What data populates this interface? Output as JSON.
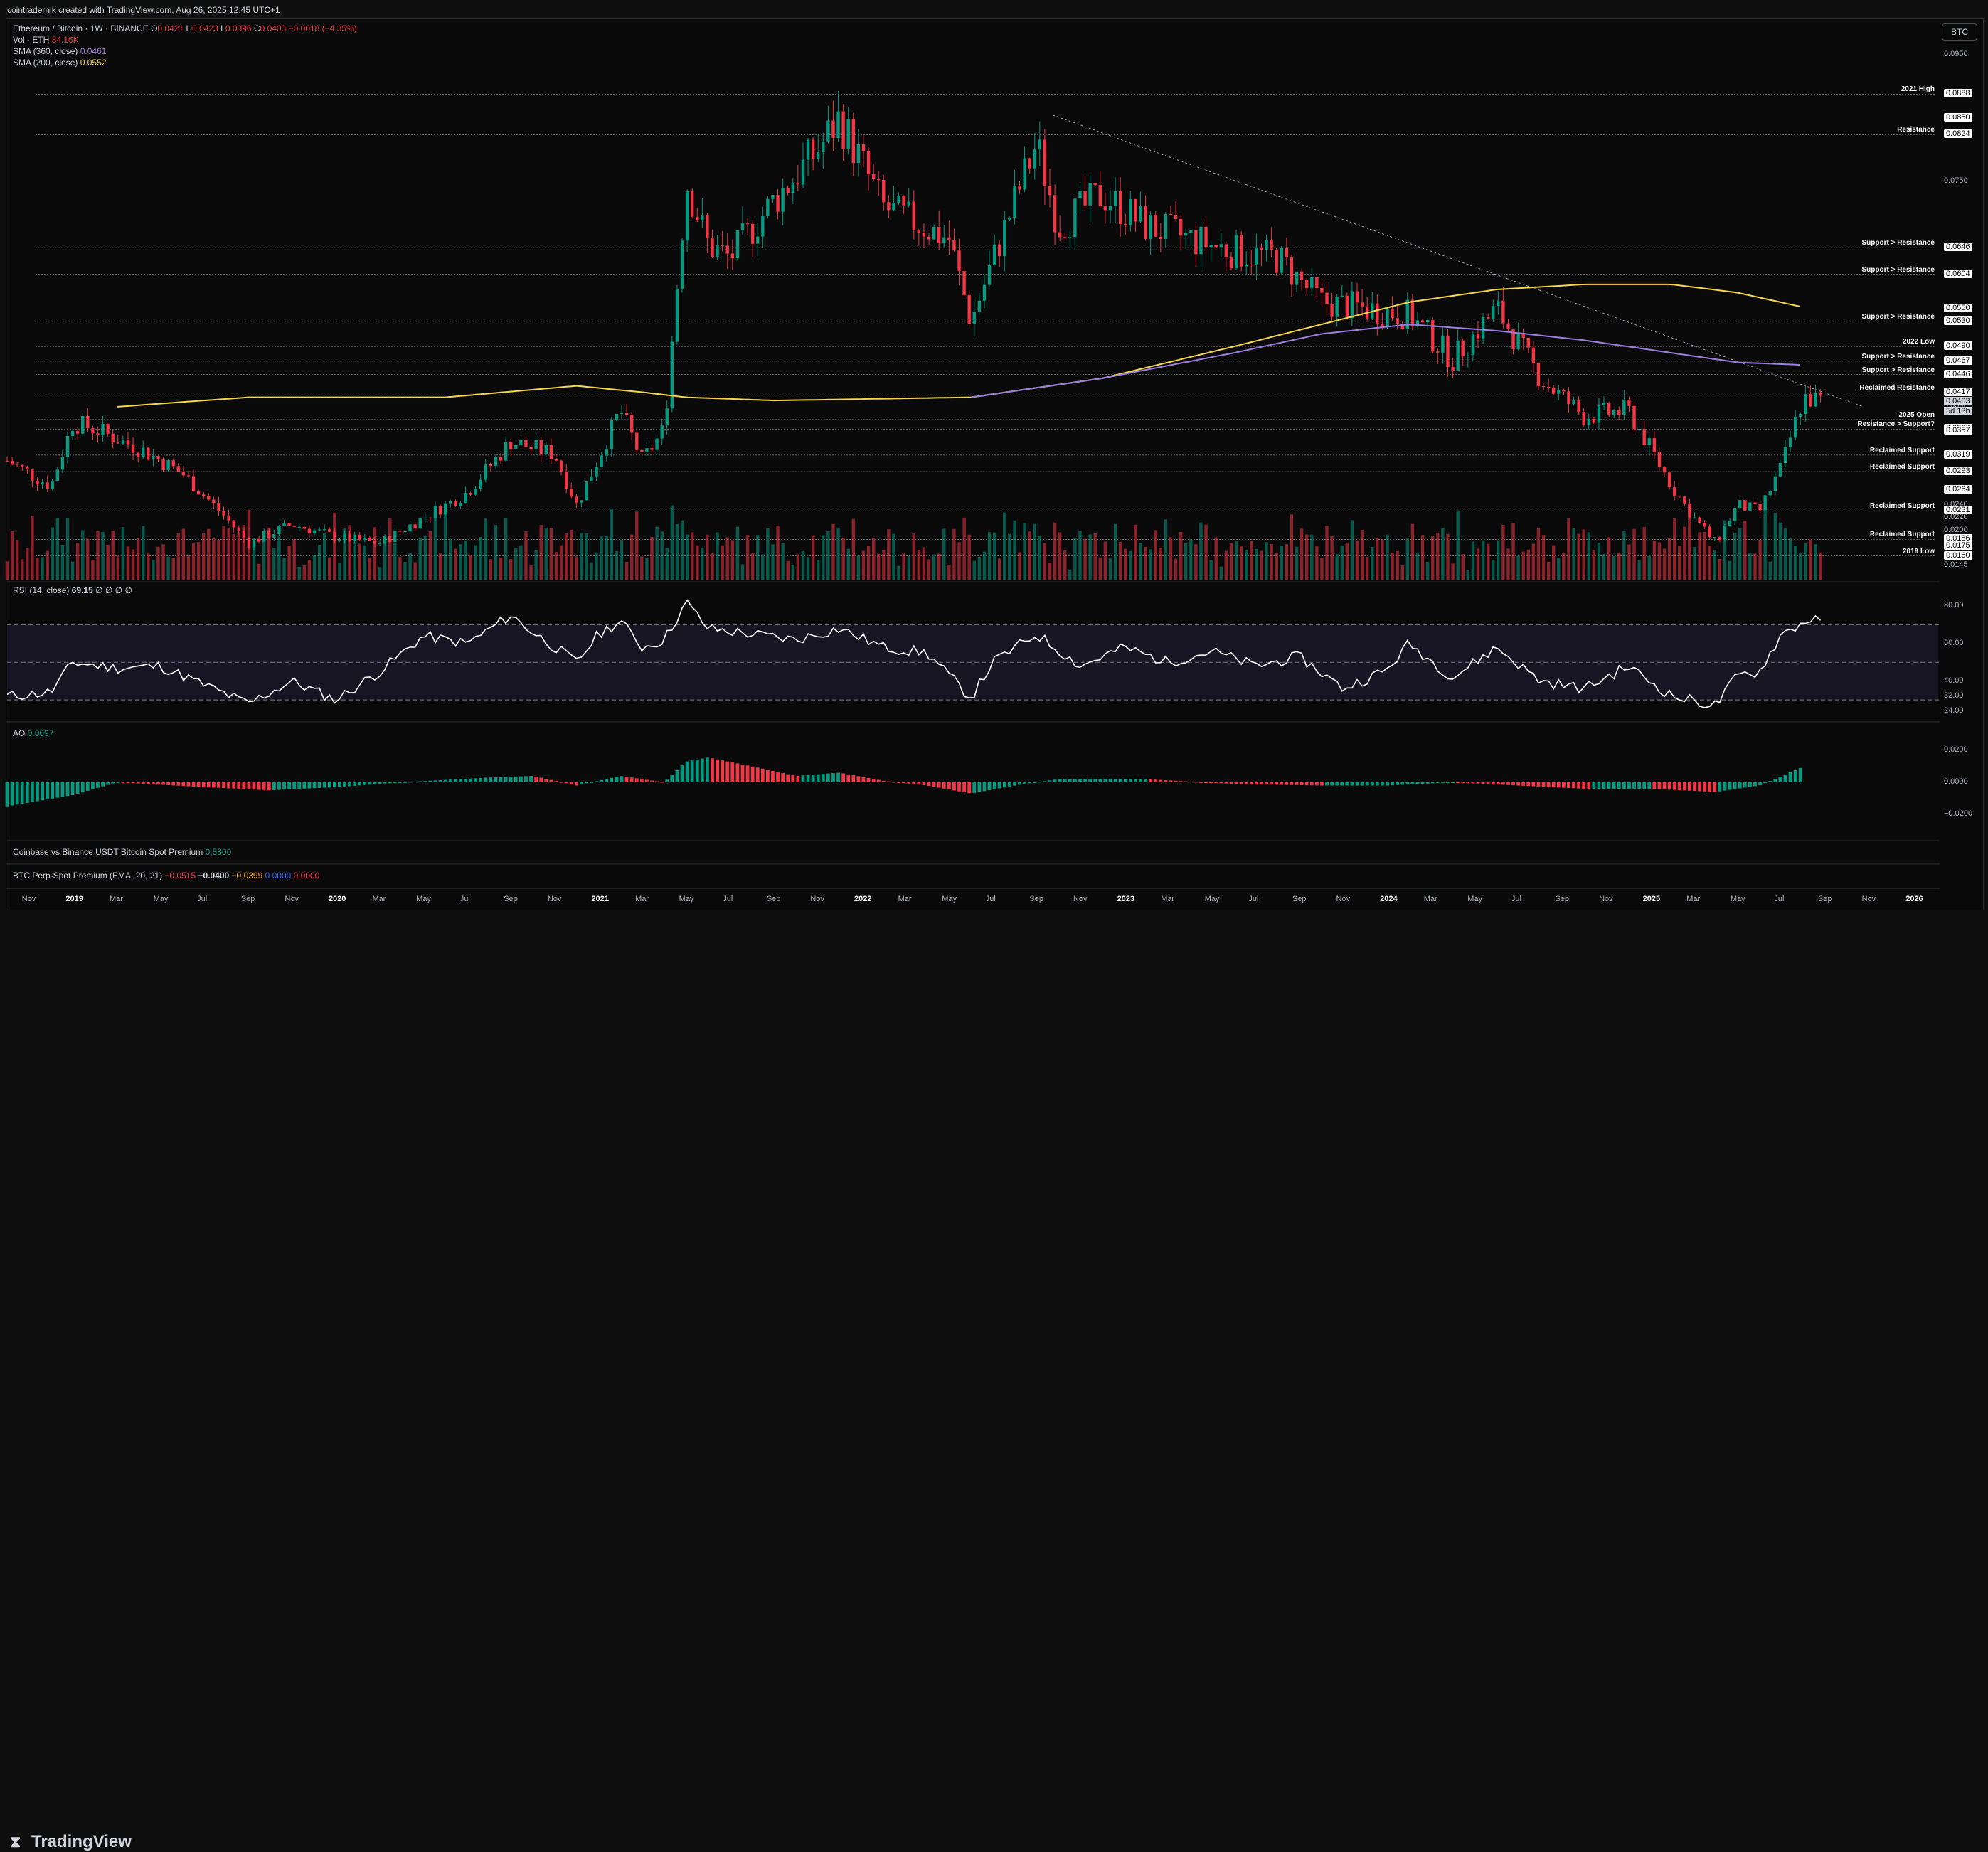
{
  "header": {
    "attribution": "cointradernik created with TradingView.com, Aug 26, 2025 12:45 UTC+1"
  },
  "legend": {
    "symbol": "Ethereum / Bitcoin · 1W · BINANCE",
    "o_label": "O",
    "o": "0.0421",
    "h_label": "H",
    "h": "0.0423",
    "l_label": "L",
    "l": "0.0396",
    "c_label": "C",
    "c": "0.0403",
    "change": "−0.0018 (−4.35%)",
    "vol_label": "Vol · ETH",
    "vol": "84.16K",
    "sma360_label": "SMA (360, close)",
    "sma360": "0.0461",
    "sma200_label": "SMA (200, close)",
    "sma200": "0.0552",
    "rsi_label": "RSI (14, close)",
    "rsi": "69.15",
    "rsi_extra": "∅ ∅ ∅ ∅",
    "ao_label": "AO",
    "ao": "0.0097",
    "premium_label": "Coinbase vs Binance USDT Bitcoin Spot Premium",
    "premium": "0.5800",
    "perp_label": "BTC Perp-Spot Premium (EMA, 20, 21)",
    "perp_v1": "−0.0515",
    "perp_v2": "−0.0400",
    "perp_v3": "−0.0399",
    "perp_v4": "0.0000",
    "perp_v5": "0.0000"
  },
  "currency_button": "BTC",
  "brand": "TradingView",
  "colors": {
    "up": "#089981",
    "down": "#f23645",
    "sma200": "#f7d64a",
    "sma360": "#9c7fe0",
    "rsi": "#ffffff"
  },
  "price_scale": {
    "plain": [
      {
        "v": 0.095,
        "t": "0.0950"
      },
      {
        "v": 0.075,
        "t": "0.0750"
      },
      {
        "v": 0.0396,
        "t": "0.0396"
      },
      {
        "v": 0.024,
        "t": "0.0240"
      },
      {
        "v": 0.022,
        "t": "0.0220"
      },
      {
        "v": 0.02,
        "t": "0.0200"
      },
      {
        "v": 0.0145,
        "t": "0.0145"
      }
    ],
    "boxed": [
      {
        "v": 0.0888,
        "t": "0.0888"
      },
      {
        "v": 0.085,
        "t": "0.0850"
      },
      {
        "v": 0.0824,
        "t": "0.0824"
      },
      {
        "v": 0.0646,
        "t": "0.0646"
      },
      {
        "v": 0.0604,
        "t": "0.0604"
      },
      {
        "v": 0.055,
        "t": "0.0550"
      },
      {
        "v": 0.053,
        "t": "0.0530"
      },
      {
        "v": 0.049,
        "t": "0.0490"
      },
      {
        "v": 0.0467,
        "t": "0.0467"
      },
      {
        "v": 0.0446,
        "t": "0.0446"
      },
      {
        "v": 0.0417,
        "t": "0.0417"
      },
      {
        "v": 0.036,
        "t": "0.0360"
      },
      {
        "v": 0.0357,
        "t": "0.0357"
      },
      {
        "v": 0.0319,
        "t": "0.0319"
      },
      {
        "v": 0.0293,
        "t": "0.0293"
      },
      {
        "v": 0.0264,
        "t": "0.0264"
      },
      {
        "v": 0.0231,
        "t": "0.0231"
      },
      {
        "v": 0.0186,
        "t": "0.0186"
      },
      {
        "v": 0.0175,
        "t": "0.0175"
      },
      {
        "v": 0.016,
        "t": "0.0160"
      }
    ],
    "current": {
      "v": 0.0403,
      "t": "0.0403",
      "sub": "5d 13h"
    }
  },
  "levels": [
    {
      "v": 0.0888,
      "label": "2021 High"
    },
    {
      "v": 0.0824,
      "label": "Resistance"
    },
    {
      "v": 0.0646,
      "label": "Support > Resistance"
    },
    {
      "v": 0.0604,
      "label": "Support > Resistance"
    },
    {
      "v": 0.053,
      "label": "Support > Resistance"
    },
    {
      "v": 0.049,
      "label": "2022 Low"
    },
    {
      "v": 0.0467,
      "label": "Support > Resistance"
    },
    {
      "v": 0.0446,
      "label": "Support > Resistance"
    },
    {
      "v": 0.0417,
      "label": "Reclaimed Resistance"
    },
    {
      "v": 0.0375,
      "label": "2025 Open"
    },
    {
      "v": 0.036,
      "label": "Resistance > Support?"
    },
    {
      "v": 0.0319,
      "label": "Reclaimed Support"
    },
    {
      "v": 0.0293,
      "label": "Reclaimed Support"
    },
    {
      "v": 0.0231,
      "label": "Reclaimed Support"
    },
    {
      "v": 0.0186,
      "label": "Reclaimed Support"
    },
    {
      "v": 0.016,
      "label": "2019 Low"
    }
  ],
  "rsi_scale": [
    {
      "v": 80,
      "t": "80.00"
    },
    {
      "v": 60,
      "t": "60.00"
    },
    {
      "v": 40,
      "t": "40.00"
    },
    {
      "v": 32,
      "t": "32.00"
    },
    {
      "v": 24,
      "t": "24.00"
    }
  ],
  "ao_scale": [
    {
      "v": 0.02,
      "t": "0.0200"
    },
    {
      "v": 0,
      "t": "0.0000"
    },
    {
      "v": -0.02,
      "t": "−0.0200"
    }
  ],
  "time_axis": [
    {
      "t": "Nov",
      "y": false
    },
    {
      "t": "2019",
      "y": true
    },
    {
      "t": "Mar",
      "y": false
    },
    {
      "t": "May",
      "y": false
    },
    {
      "t": "Jul",
      "y": false
    },
    {
      "t": "Sep",
      "y": false
    },
    {
      "t": "Nov",
      "y": false
    },
    {
      "t": "2020",
      "y": true
    },
    {
      "t": "Mar",
      "y": false
    },
    {
      "t": "May",
      "y": false
    },
    {
      "t": "Jul",
      "y": false
    },
    {
      "t": "Sep",
      "y": false
    },
    {
      "t": "Nov",
      "y": false
    },
    {
      "t": "2021",
      "y": true
    },
    {
      "t": "Mar",
      "y": false
    },
    {
      "t": "May",
      "y": false
    },
    {
      "t": "Jul",
      "y": false
    },
    {
      "t": "Sep",
      "y": false
    },
    {
      "t": "Nov",
      "y": false
    },
    {
      "t": "2022",
      "y": true
    },
    {
      "t": "Mar",
      "y": false
    },
    {
      "t": "May",
      "y": false
    },
    {
      "t": "Jul",
      "y": false
    },
    {
      "t": "Sep",
      "y": false
    },
    {
      "t": "Nov",
      "y": false
    },
    {
      "t": "2023",
      "y": true
    },
    {
      "t": "Mar",
      "y": false
    },
    {
      "t": "May",
      "y": false
    },
    {
      "t": "Jul",
      "y": false
    },
    {
      "t": "Sep",
      "y": false
    },
    {
      "t": "Nov",
      "y": false
    },
    {
      "t": "2024",
      "y": true
    },
    {
      "t": "Mar",
      "y": false
    },
    {
      "t": "May",
      "y": false
    },
    {
      "t": "Jul",
      "y": false
    },
    {
      "t": "Sep",
      "y": false
    },
    {
      "t": "Nov",
      "y": false
    },
    {
      "t": "2025",
      "y": true
    },
    {
      "t": "Mar",
      "y": false
    },
    {
      "t": "May",
      "y": false
    },
    {
      "t": "Jul",
      "y": false
    },
    {
      "t": "Sep",
      "y": false
    },
    {
      "t": "Nov",
      "y": false
    },
    {
      "t": "2026",
      "y": true
    }
  ],
  "chart_data": {
    "type": "line",
    "x_range": [
      "2018-11",
      "2025-08"
    ],
    "price_keyframes": [
      [
        "2018-10",
        0.031
      ],
      [
        "2018-12",
        0.027
      ],
      [
        "2019-01",
        0.037
      ],
      [
        "2019-02",
        0.036
      ],
      [
        "2019-04",
        0.033
      ],
      [
        "2019-06",
        0.029
      ],
      [
        "2019-08",
        0.022
      ],
      [
        "2019-09",
        0.018
      ],
      [
        "2019-11",
        0.021
      ],
      [
        "2020-01",
        0.019
      ],
      [
        "2020-03",
        0.018
      ],
      [
        "2020-05",
        0.022
      ],
      [
        "2020-07",
        0.026
      ],
      [
        "2020-09",
        0.034
      ],
      [
        "2020-11",
        0.032
      ],
      [
        "2020-12",
        0.024
      ],
      [
        "2021-02",
        0.039
      ],
      [
        "2021-03",
        0.031
      ],
      [
        "2021-04",
        0.036
      ],
      [
        "2021-05",
        0.075
      ],
      [
        "2021-06",
        0.065
      ],
      [
        "2021-07",
        0.063
      ],
      [
        "2021-09",
        0.072
      ],
      [
        "2021-11",
        0.08
      ],
      [
        "2021-12",
        0.085
      ],
      [
        "2022-02",
        0.071
      ],
      [
        "2022-05",
        0.066
      ],
      [
        "2022-06",
        0.053
      ],
      [
        "2022-08",
        0.072
      ],
      [
        "2022-09",
        0.081
      ],
      [
        "2022-10",
        0.068
      ],
      [
        "2022-12",
        0.073
      ],
      [
        "2023-02",
        0.068
      ],
      [
        "2023-04",
        0.066
      ],
      [
        "2023-06",
        0.064
      ],
      [
        "2023-08",
        0.063
      ],
      [
        "2023-10",
        0.056
      ],
      [
        "2023-12",
        0.055
      ],
      [
        "2024-02",
        0.054
      ],
      [
        "2024-04",
        0.047
      ],
      [
        "2024-06",
        0.055
      ],
      [
        "2024-08",
        0.044
      ],
      [
        "2024-10",
        0.038
      ],
      [
        "2024-12",
        0.039
      ],
      [
        "2025-02",
        0.027
      ],
      [
        "2025-03",
        0.022
      ],
      [
        "2025-04",
        0.018
      ],
      [
        "2025-05",
        0.024
      ],
      [
        "2025-06",
        0.023
      ],
      [
        "2025-07",
        0.03
      ],
      [
        "2025-08",
        0.041
      ],
      [
        "2025-08-26",
        0.0403
      ]
    ],
    "sma200": [
      [
        "2019-03",
        0.0395
      ],
      [
        "2019-09",
        0.041
      ],
      [
        "2020-06",
        0.041
      ],
      [
        "2020-12",
        0.0428
      ],
      [
        "2021-03",
        0.0418
      ],
      [
        "2021-05",
        0.041
      ],
      [
        "2021-09",
        0.0405
      ],
      [
        "2022-06",
        0.041
      ],
      [
        "2022-12",
        0.044
      ],
      [
        "2023-06",
        0.049
      ],
      [
        "2023-10",
        0.0525
      ],
      [
        "2024-02",
        0.056
      ],
      [
        "2024-06",
        0.058
      ],
      [
        "2024-10",
        0.0588
      ],
      [
        "2025-02",
        0.0588
      ],
      [
        "2025-05",
        0.0575
      ],
      [
        "2025-08",
        0.0552
      ]
    ],
    "sma360": [
      [
        "2022-06",
        0.041
      ],
      [
        "2022-12",
        0.044
      ],
      [
        "2023-06",
        0.048
      ],
      [
        "2023-10",
        0.051
      ],
      [
        "2024-02",
        0.0525
      ],
      [
        "2024-06",
        0.0515
      ],
      [
        "2024-10",
        0.05
      ],
      [
        "2025-02",
        0.048
      ],
      [
        "2025-05",
        0.0465
      ],
      [
        "2025-08",
        0.0461
      ]
    ],
    "rsi": [
      [
        "2018-10",
        32
      ],
      [
        "2018-12",
        34
      ],
      [
        "2019-01",
        50
      ],
      [
        "2019-03",
        47
      ],
      [
        "2019-05",
        48
      ],
      [
        "2019-07",
        38
      ],
      [
        "2019-09",
        28
      ],
      [
        "2019-11",
        40
      ],
      [
        "2020-01",
        30
      ],
      [
        "2020-03",
        45
      ],
      [
        "2020-05",
        64
      ],
      [
        "2020-07",
        60
      ],
      [
        "2020-09",
        75
      ],
      [
        "2020-10",
        66
      ],
      [
        "2020-12",
        50
      ],
      [
        "2021-01",
        65
      ],
      [
        "2021-02",
        72
      ],
      [
        "2021-03",
        58
      ],
      [
        "2021-04",
        62
      ],
      [
        "2021-05",
        82
      ],
      [
        "2021-06",
        68
      ],
      [
        "2021-08",
        65
      ],
      [
        "2021-10",
        62
      ],
      [
        "2021-12",
        68
      ],
      [
        "2022-02",
        58
      ],
      [
        "2022-04",
        55
      ],
      [
        "2022-06",
        31
      ],
      [
        "2022-07",
        50
      ],
      [
        "2022-09",
        65
      ],
      [
        "2022-11",
        48
      ],
      [
        "2023-01",
        58
      ],
      [
        "2023-03",
        50
      ],
      [
        "2023-05",
        56
      ],
      [
        "2023-07",
        48
      ],
      [
        "2023-09",
        53
      ],
      [
        "2023-11",
        36
      ],
      [
        "2024-01",
        46
      ],
      [
        "2024-02",
        60
      ],
      [
        "2024-04",
        42
      ],
      [
        "2024-06",
        58
      ],
      [
        "2024-08",
        40
      ],
      [
        "2024-10",
        36
      ],
      [
        "2024-12",
        48
      ],
      [
        "2025-02",
        32
      ],
      [
        "2025-04",
        27
      ],
      [
        "2025-05",
        43
      ],
      [
        "2025-06",
        45
      ],
      [
        "2025-07",
        65
      ],
      [
        "2025-08-15",
        74
      ],
      [
        "2025-08-26",
        69.15
      ]
    ],
    "ao": [
      [
        "2018-10",
        -0.015
      ],
      [
        "2019-01",
        -0.008
      ],
      [
        "2019-03",
        0.0
      ],
      [
        "2019-07",
        -0.003
      ],
      [
        "2019-10",
        -0.005
      ],
      [
        "2020-01",
        -0.003
      ],
      [
        "2020-04",
        0.0
      ],
      [
        "2020-08",
        0.003
      ],
      [
        "2020-10",
        0.004
      ],
      [
        "2020-12",
        -0.002
      ],
      [
        "2021-02",
        0.004
      ],
      [
        "2021-04",
        0.0
      ],
      [
        "2021-05",
        0.013
      ],
      [
        "2021-06",
        0.0155
      ],
      [
        "2021-08",
        0.01
      ],
      [
        "2021-10",
        0.004
      ],
      [
        "2021-12",
        0.006
      ],
      [
        "2022-02",
        0.001
      ],
      [
        "2022-04",
        -0.002
      ],
      [
        "2022-06",
        -0.007
      ],
      [
        "2022-08",
        -0.002
      ],
      [
        "2022-10",
        0.002
      ],
      [
        "2023-02",
        0.002
      ],
      [
        "2023-06",
        -0.001
      ],
      [
        "2023-10",
        -0.002
      ],
      [
        "2024-01",
        -0.002
      ],
      [
        "2024-04",
        0.0
      ],
      [
        "2024-07",
        -0.002
      ],
      [
        "2024-10",
        -0.004
      ],
      [
        "2025-01",
        -0.004
      ],
      [
        "2025-04",
        -0.006
      ],
      [
        "2025-06",
        -0.002
      ],
      [
        "2025-08",
        0.0097
      ]
    ]
  }
}
